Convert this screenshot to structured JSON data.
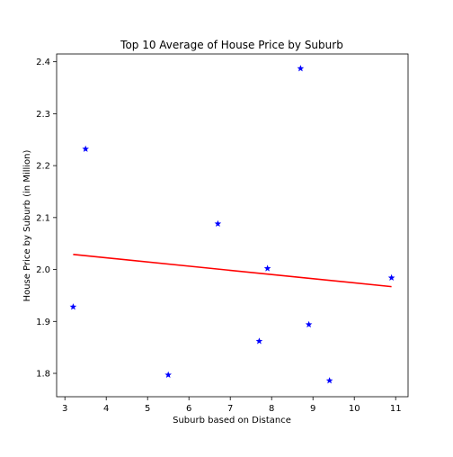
{
  "chart_data": {
    "type": "scatter",
    "title": "Top 10 Average of House Price by Suburb",
    "xlabel": "Suburb based on Distance",
    "ylabel": "House Price by Suburb (in Million)",
    "xlim": [
      2.8,
      11.3
    ],
    "ylim": [
      1.755,
      2.415
    ],
    "xticks": [
      "3",
      "4",
      "5",
      "6",
      "7",
      "8",
      "9",
      "10",
      "11"
    ],
    "yticks": [
      "1.8",
      "1.9",
      "2.0",
      "2.1",
      "2.2",
      "2.3",
      "2.4"
    ],
    "grid": false,
    "marker": "star",
    "point_color": "#0000ff",
    "trend_color": "#ff0000",
    "points": [
      {
        "x": 3.2,
        "y": 1.928
      },
      {
        "x": 3.5,
        "y": 2.232
      },
      {
        "x": 5.5,
        "y": 1.797
      },
      {
        "x": 6.7,
        "y": 2.088
      },
      {
        "x": 7.7,
        "y": 1.862
      },
      {
        "x": 7.9,
        "y": 2.002
      },
      {
        "x": 8.7,
        "y": 2.387
      },
      {
        "x": 8.9,
        "y": 1.894
      },
      {
        "x": 9.4,
        "y": 1.786
      },
      {
        "x": 10.9,
        "y": 1.984
      }
    ],
    "trendline": {
      "x": [
        3.2,
        10.9
      ],
      "y": [
        2.029,
        1.967
      ]
    }
  }
}
